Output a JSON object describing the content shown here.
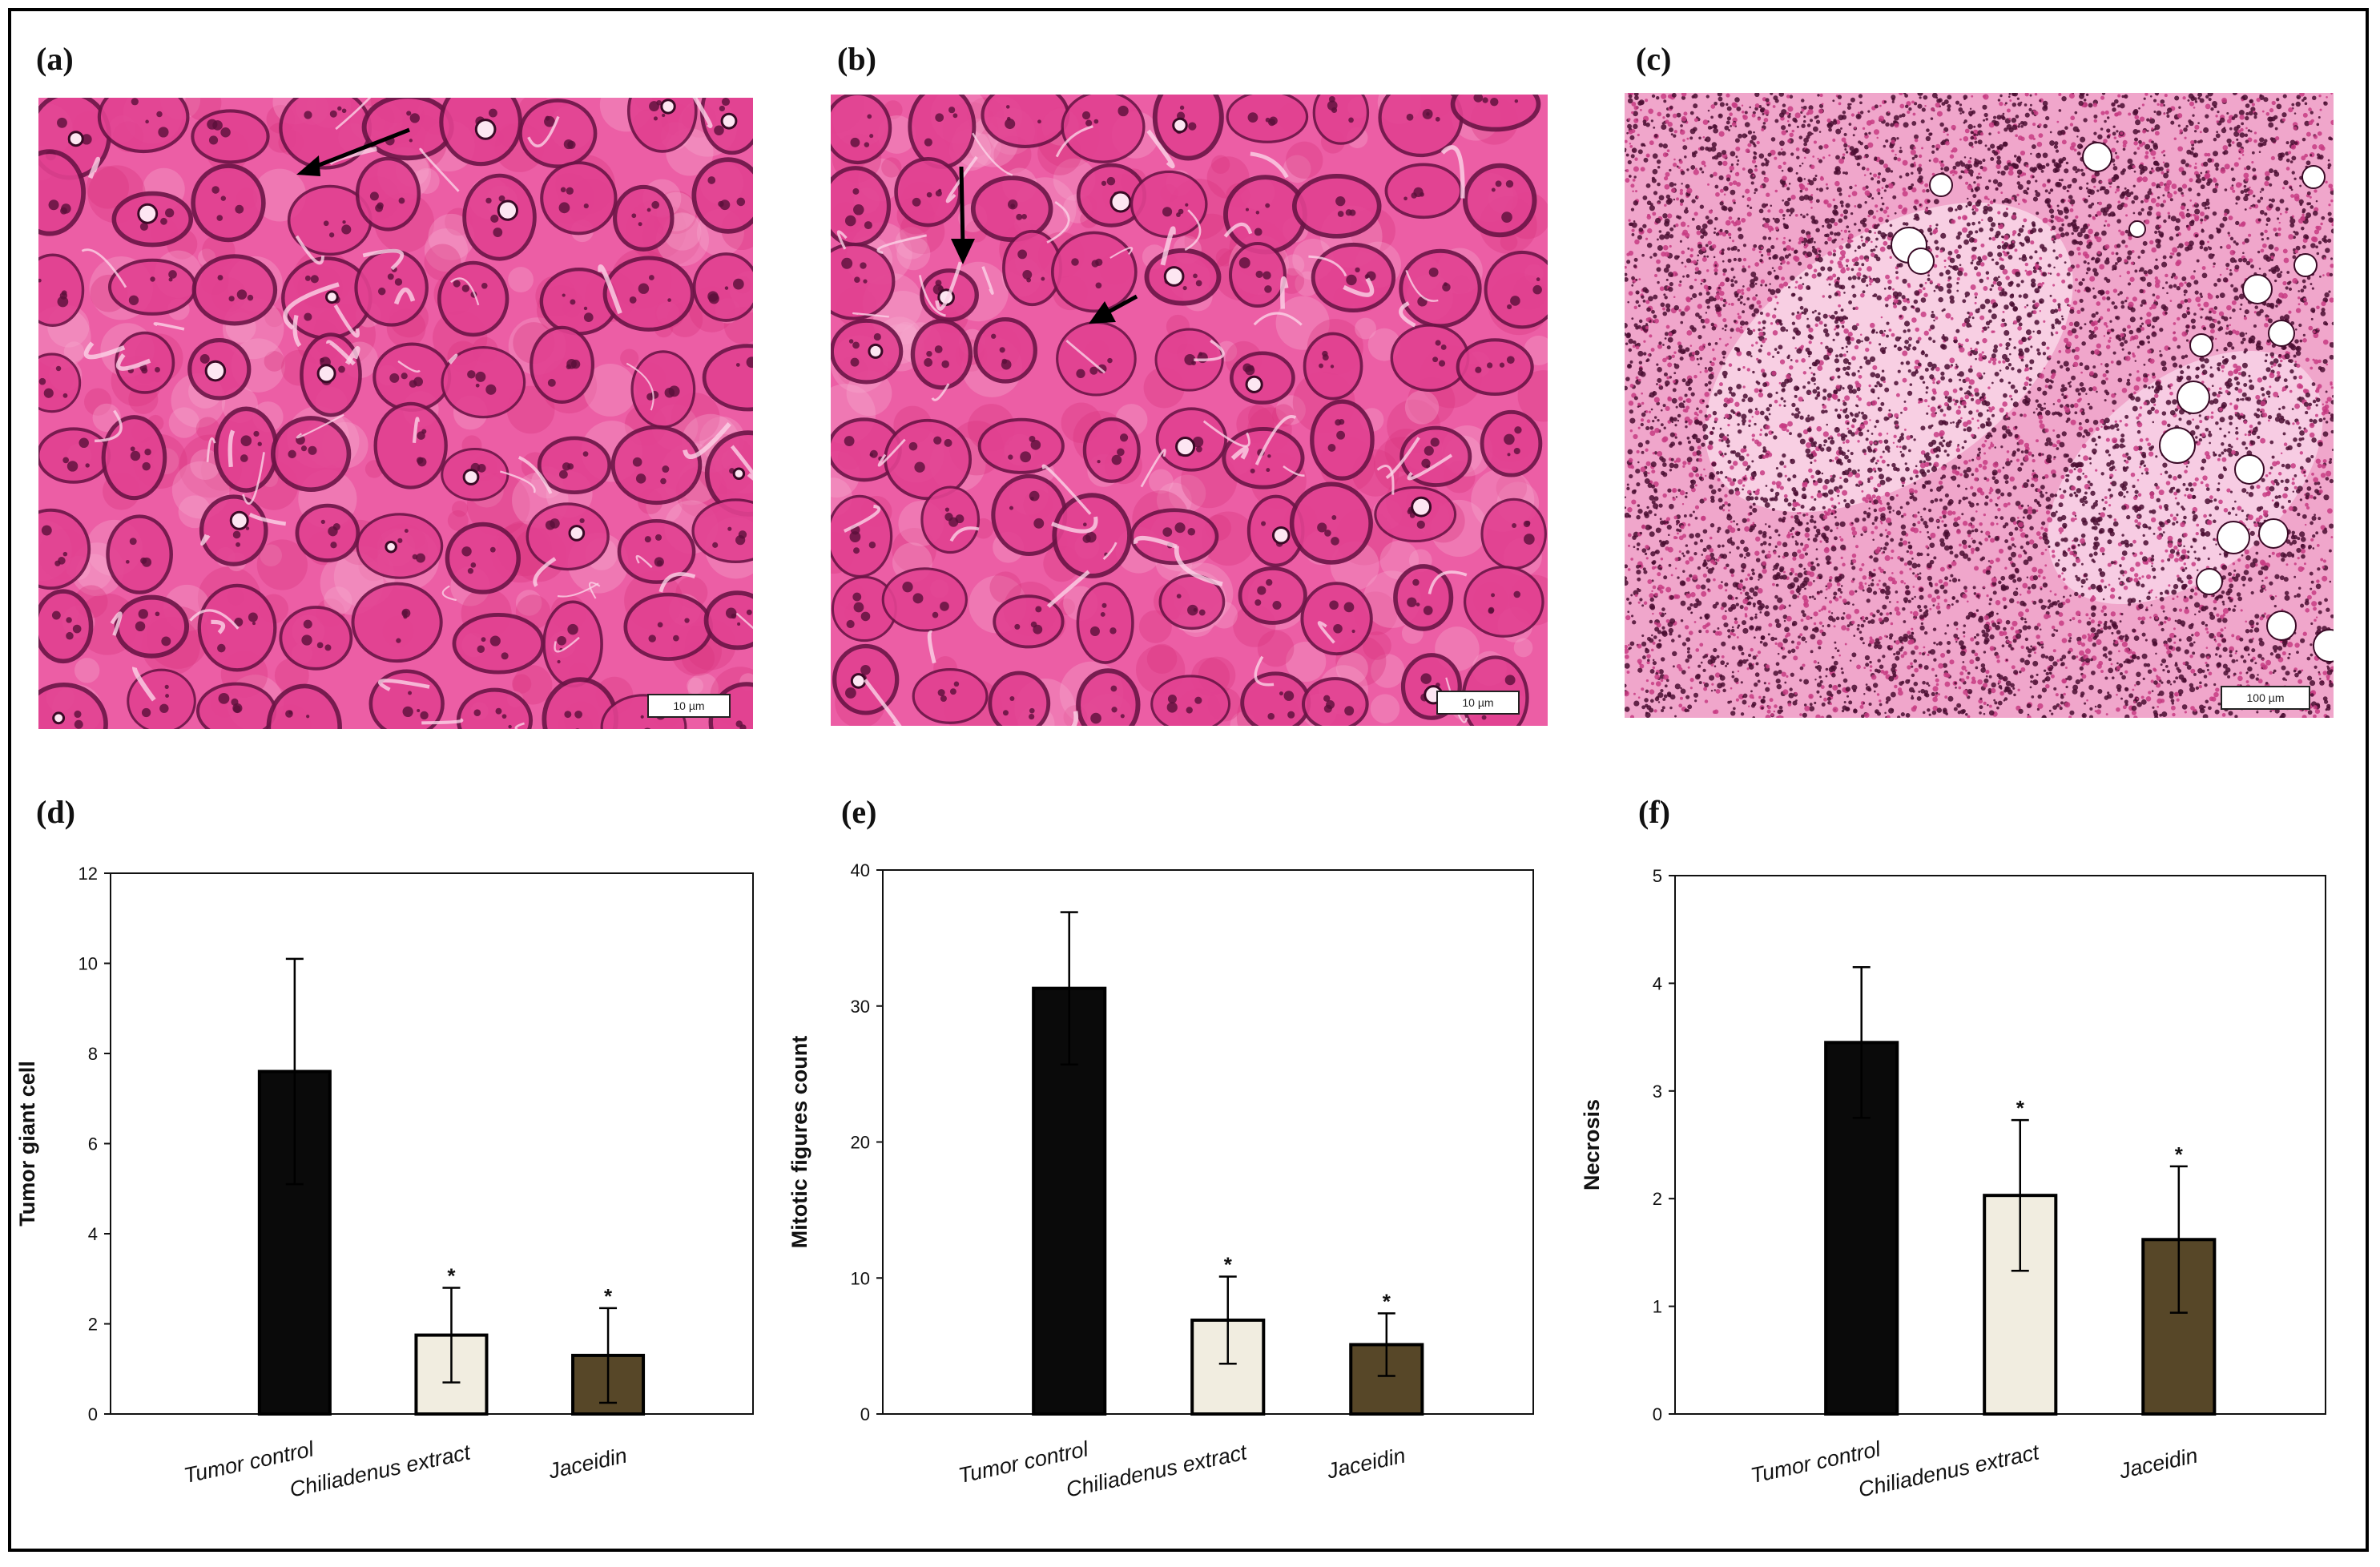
{
  "panels": {
    "a": {
      "label": "(a)",
      "scale_bar": "10 µm"
    },
    "b": {
      "label": "(b)",
      "scale_bar": "10 µm"
    },
    "c": {
      "label": "(c)",
      "scale_bar": "100 µm"
    },
    "d": {
      "label": "(d)"
    },
    "e": {
      "label": "(e)"
    },
    "f": {
      "label": "(f)"
    }
  },
  "colors": {
    "tumor_control": "#0a0a0a",
    "chiliadenus_extract": "#f1ede0",
    "jaceidin": "#574728",
    "stain_pink": "#e84f9a",
    "stain_nucleus": "#5a0f3a"
  },
  "chart_data": [
    {
      "type": "bar",
      "panel": "d",
      "categories": [
        "Tumor control",
        "Chiliadenus extract",
        "Jaceidin"
      ],
      "values": [
        7.6,
        1.75,
        1.3
      ],
      "errors": [
        2.5,
        1.05,
        1.05
      ],
      "significance": [
        "",
        "*",
        "*"
      ],
      "xlabel": "",
      "ylabel": "Tumor giant  cell",
      "ylim": [
        0,
        12
      ],
      "yticks": [
        "0",
        "2",
        "4",
        "6",
        "8",
        "10",
        "12"
      ],
      "grid": false
    },
    {
      "type": "bar",
      "panel": "e",
      "categories": [
        "Tumor control",
        "Chiliadenus extract",
        "Jaceidin"
      ],
      "values": [
        31.3,
        6.9,
        5.1
      ],
      "errors": [
        5.6,
        3.2,
        2.3
      ],
      "significance": [
        "",
        "*",
        "*"
      ],
      "xlabel": "",
      "ylabel": "Mitotic figures count",
      "ylim": [
        0,
        40
      ],
      "yticks": [
        "0",
        "10",
        "20",
        "30",
        "40"
      ],
      "grid": false
    },
    {
      "type": "bar",
      "panel": "f",
      "categories": [
        "Tumor control",
        "Chiliadenus extract",
        "Jaceidin"
      ],
      "values": [
        3.45,
        2.03,
        1.62
      ],
      "errors": [
        0.7,
        0.7,
        0.68
      ],
      "significance": [
        "",
        "*",
        "*"
      ],
      "xlabel": "",
      "ylabel": "Necrosis",
      "ylim": [
        0,
        5
      ],
      "yticks": [
        "0",
        "1",
        "2",
        "3",
        "4",
        "5"
      ],
      "grid": false
    }
  ]
}
